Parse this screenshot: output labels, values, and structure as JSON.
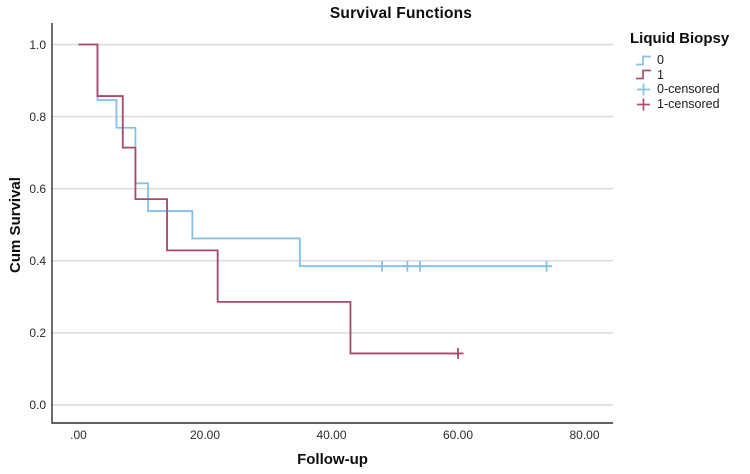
{
  "page": {
    "background": "#ffffff",
    "text_color": "#111111"
  },
  "chart_data": {
    "type": "line",
    "subtype": "kaplan-meier-step",
    "title": "Survival Functions",
    "xlabel": "Follow-up",
    "ylabel": "Cum Survival",
    "x_ticks": [
      0,
      20,
      40,
      60,
      80
    ],
    "x_tick_labels": [
      ".00",
      "20.00",
      "40.00",
      "60.00",
      "80.00"
    ],
    "y_ticks": [
      0.0,
      0.2,
      0.4,
      0.6,
      0.8,
      1.0
    ],
    "y_tick_labels": [
      "0.0",
      "0.2",
      "0.4",
      "0.6",
      "0.8",
      "1.0"
    ],
    "xlim": [
      -4.2,
      84.5
    ],
    "ylim": [
      0,
      1
    ],
    "grid": "horizontal-only",
    "gridline_color": "#d8d8d8",
    "axis_color": "#2e2e2e",
    "legend": {
      "title": "Liquid Biopsy",
      "position": "right",
      "entries": [
        {
          "label": "0",
          "symbol": "step-line",
          "color": "#85c1e6"
        },
        {
          "label": "1",
          "symbol": "step-line",
          "color": "#b04d72"
        },
        {
          "label": "0-censored",
          "symbol": "plus",
          "color": "#85c1e6"
        },
        {
          "label": "1-censored",
          "symbol": "plus",
          "color": "#b04d72"
        }
      ]
    },
    "series": [
      {
        "name": "0",
        "color": "#85c1e6",
        "start": [
          0,
          1.0
        ],
        "steps": [
          [
            3,
            0.846
          ],
          [
            6,
            0.769
          ],
          [
            9,
            0.615
          ],
          [
            11,
            0.538
          ],
          [
            18,
            0.462
          ],
          [
            35,
            0.385
          ]
        ],
        "end_time": 74,
        "censored": [
          [
            48,
            0.385
          ],
          [
            52,
            0.385
          ],
          [
            54,
            0.385
          ],
          [
            74,
            0.385
          ]
        ]
      },
      {
        "name": "1",
        "color": "#a8486c",
        "start": [
          0,
          1.0
        ],
        "steps": [
          [
            3,
            0.857
          ],
          [
            7,
            0.714
          ],
          [
            9,
            0.571
          ],
          [
            14,
            0.429
          ],
          [
            22,
            0.286
          ],
          [
            43,
            0.143
          ]
        ],
        "end_time": 60,
        "censored": [
          [
            60,
            0.143
          ]
        ]
      }
    ]
  }
}
